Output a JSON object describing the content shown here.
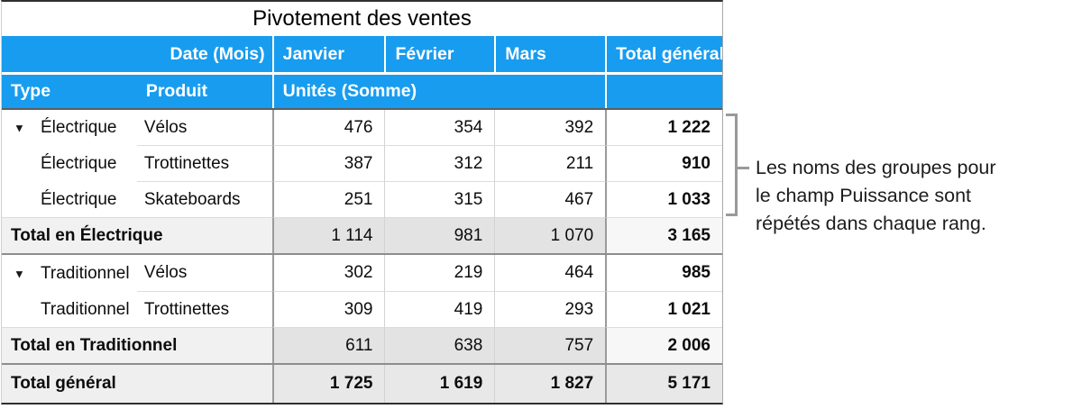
{
  "title": "Pivotement des ventes",
  "colors": {
    "header_blue": "#189CEF",
    "bracket_gray": "#9A9A9A"
  },
  "table": {
    "disclosure_icon": "▼",
    "header1": {
      "date_label": "Date  (Mois)",
      "months": [
        "Janvier",
        "Février",
        "Mars"
      ],
      "total_label": "Total général"
    },
    "header2": {
      "type": "Type",
      "produit": "Produit",
      "units": "Unités (Somme)"
    },
    "rows": [
      {
        "type": "Électrique",
        "produit": "Vélos",
        "m1": "476",
        "m2": "354",
        "m3": "392",
        "total": "1 222"
      },
      {
        "type": "Électrique",
        "produit": "Trottinettes",
        "m1": "387",
        "m2": "312",
        "m3": "211",
        "total": "910"
      },
      {
        "type": "Électrique",
        "produit": "Skateboards",
        "m1": "251",
        "m2": "315",
        "m3": "467",
        "total": "1 033"
      },
      {
        "label": "Total en Électrique",
        "m1": "1 114",
        "m2": "981",
        "m3": "1 070",
        "total": "3 165"
      },
      {
        "type": "Traditionnel",
        "produit": "Vélos",
        "m1": "302",
        "m2": "219",
        "m3": "464",
        "total": "985"
      },
      {
        "type": "Traditionnel",
        "produit": "Trottinettes",
        "m1": "309",
        "m2": "419",
        "m3": "293",
        "total": "1 021"
      },
      {
        "label": "Total en Traditionnel",
        "m1": "611",
        "m2": "638",
        "m3": "757",
        "total": "2 006"
      },
      {
        "label": "Total général",
        "m1": "1 725",
        "m2": "1 619",
        "m3": "1 827",
        "total": "5 171"
      }
    ]
  },
  "annotation": {
    "lines": [
      "Les noms des groupes pour",
      "le champ Puissance sont",
      "répétés dans chaque rang."
    ],
    "full_text": "Les noms des groupes pour le champ Puissance sont répétés dans chaque rang."
  }
}
